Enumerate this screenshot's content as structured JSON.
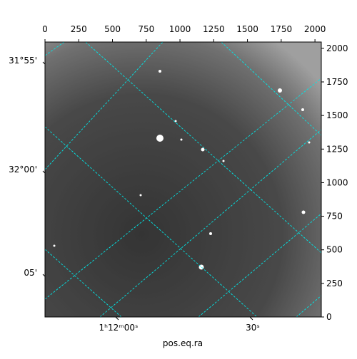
{
  "chart_data": {
    "type": "image",
    "xlabel": "pos.eq.ra",
    "xlim": [
      0,
      2047
    ],
    "xticks": [
      0,
      250,
      500,
      750,
      1000,
      1250,
      1500,
      1750,
      2000
    ],
    "ylim": [
      0,
      2047
    ],
    "yticks": [
      0,
      250,
      500,
      750,
      1000,
      1250,
      1500,
      1750,
      2000
    ],
    "left_labels": [
      "31°55'",
      "32°00'",
      "05'"
    ],
    "bottom_labels": [
      "1ʰ12ᵐ00ˢ",
      "30ˢ"
    ],
    "grid_color": "#00e5e5"
  }
}
